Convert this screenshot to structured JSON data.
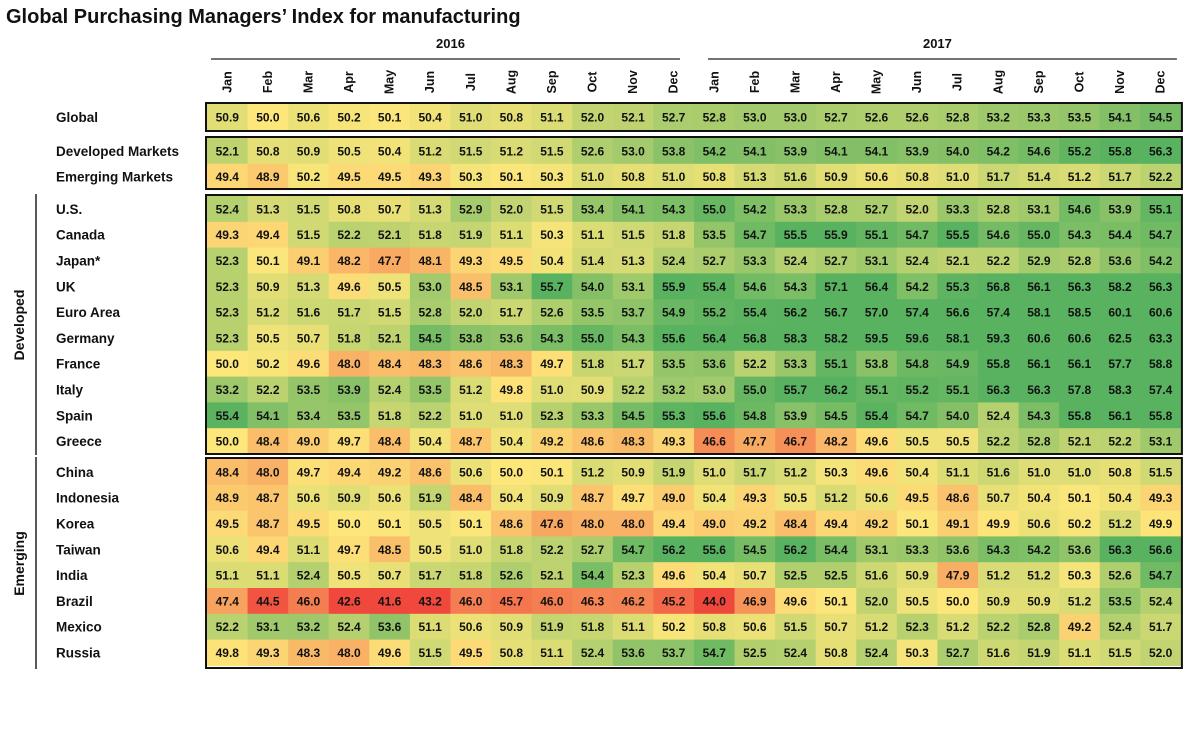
{
  "title": "Global Purchasing Managers’ Index for manufacturing",
  "chart_data": {
    "type": "heatmap",
    "title": "Global Purchasing Managers’ Index for manufacturing",
    "years": [
      "2016",
      "2017"
    ],
    "months": [
      "Jan",
      "Feb",
      "Mar",
      "Apr",
      "May",
      "Jun",
      "Jul",
      "Aug",
      "Sep",
      "Oct",
      "Nov",
      "Dec"
    ],
    "color_scale": {
      "low": "#f0483c",
      "mid": "#fde77a",
      "high": "#58b260"
    },
    "groups": [
      {
        "label": "",
        "rows": [
          {
            "name": "Global",
            "values": [
              50.9,
              50.0,
              50.6,
              50.2,
              50.1,
              50.4,
              51.0,
              50.8,
              51.1,
              52.0,
              52.1,
              52.7,
              52.8,
              53.0,
              53.0,
              52.7,
              52.6,
              52.6,
              52.8,
              53.2,
              53.3,
              53.5,
              54.1,
              54.5
            ]
          }
        ]
      },
      {
        "label": "",
        "rows": [
          {
            "name": "Developed Markets",
            "values": [
              52.1,
              50.8,
              50.9,
              50.5,
              50.4,
              51.2,
              51.5,
              51.2,
              51.5,
              52.6,
              53.0,
              53.8,
              54.2,
              54.1,
              53.9,
              54.1,
              54.1,
              53.9,
              54.0,
              54.2,
              54.6,
              55.2,
              55.8,
              56.3
            ]
          },
          {
            "name": "Emerging Markets",
            "values": [
              49.4,
              48.9,
              50.2,
              49.5,
              49.5,
              49.3,
              50.3,
              50.1,
              50.3,
              51.0,
              50.8,
              51.0,
              50.8,
              51.3,
              51.6,
              50.9,
              50.6,
              50.8,
              51.0,
              51.7,
              51.4,
              51.2,
              51.7,
              52.2
            ]
          }
        ]
      },
      {
        "label": "Developed",
        "rows": [
          {
            "name": "U.S.",
            "values": [
              52.4,
              51.3,
              51.5,
              50.8,
              50.7,
              51.3,
              52.9,
              52.0,
              51.5,
              53.4,
              54.1,
              54.3,
              55.0,
              54.2,
              53.3,
              52.8,
              52.7,
              52.0,
              53.3,
              52.8,
              53.1,
              54.6,
              53.9,
              55.1
            ]
          },
          {
            "name": "Canada",
            "values": [
              49.3,
              49.4,
              51.5,
              52.2,
              52.1,
              51.8,
              51.9,
              51.1,
              50.3,
              51.1,
              51.5,
              51.8,
              53.5,
              54.7,
              55.5,
              55.9,
              55.1,
              54.7,
              55.5,
              54.6,
              55.0,
              54.3,
              54.4,
              54.7
            ]
          },
          {
            "name": "Japan*",
            "values": [
              52.3,
              50.1,
              49.1,
              48.2,
              47.7,
              48.1,
              49.3,
              49.5,
              50.4,
              51.4,
              51.3,
              52.4,
              52.7,
              53.3,
              52.4,
              52.7,
              53.1,
              52.4,
              52.1,
              52.2,
              52.9,
              52.8,
              53.6,
              54.2
            ]
          },
          {
            "name": "UK",
            "values": [
              52.3,
              50.9,
              51.3,
              49.6,
              50.5,
              53.0,
              48.5,
              53.1,
              55.7,
              54.0,
              53.1,
              55.9,
              55.4,
              54.6,
              54.3,
              57.1,
              56.4,
              54.2,
              55.3,
              56.8,
              56.1,
              56.3,
              58.2,
              56.3
            ]
          },
          {
            "name": "Euro Area",
            "values": [
              52.3,
              51.2,
              51.6,
              51.7,
              51.5,
              52.8,
              52.0,
              51.7,
              52.6,
              53.5,
              53.7,
              54.9,
              55.2,
              55.4,
              56.2,
              56.7,
              57.0,
              57.4,
              56.6,
              57.4,
              58.1,
              58.5,
              60.1,
              60.6
            ]
          },
          {
            "name": "Germany",
            "values": [
              52.3,
              50.5,
              50.7,
              51.8,
              52.1,
              54.5,
              53.8,
              53.6,
              54.3,
              55.0,
              54.3,
              55.6,
              56.4,
              56.8,
              58.3,
              58.2,
              59.5,
              59.6,
              58.1,
              59.3,
              60.6,
              60.6,
              62.5,
              63.3
            ]
          },
          {
            "name": "France",
            "values": [
              50.0,
              50.2,
              49.6,
              48.0,
              48.4,
              48.3,
              48.6,
              48.3,
              49.7,
              51.8,
              51.7,
              53.5,
              53.6,
              52.2,
              53.3,
              55.1,
              53.8,
              54.8,
              54.9,
              55.8,
              56.1,
              56.1,
              57.7,
              58.8
            ]
          },
          {
            "name": "Italy",
            "values": [
              53.2,
              52.2,
              53.5,
              53.9,
              52.4,
              53.5,
              51.2,
              49.8,
              51.0,
              50.9,
              52.2,
              53.2,
              53.0,
              55.0,
              55.7,
              56.2,
              55.1,
              55.2,
              55.1,
              56.3,
              56.3,
              57.8,
              58.3,
              57.4
            ]
          },
          {
            "name": "Spain",
            "values": [
              55.4,
              54.1,
              53.4,
              53.5,
              51.8,
              52.2,
              51.0,
              51.0,
              52.3,
              53.3,
              54.5,
              55.3,
              55.6,
              54.8,
              53.9,
              54.5,
              55.4,
              54.7,
              54.0,
              52.4,
              54.3,
              55.8,
              56.1,
              55.8
            ]
          },
          {
            "name": "Greece",
            "values": [
              50.0,
              48.4,
              49.0,
              49.7,
              48.4,
              50.4,
              48.7,
              50.4,
              49.2,
              48.6,
              48.3,
              49.3,
              46.6,
              47.7,
              46.7,
              48.2,
              49.6,
              50.5,
              50.5,
              52.2,
              52.8,
              52.1,
              52.2,
              53.1
            ]
          }
        ]
      },
      {
        "label": "Emerging",
        "rows": [
          {
            "name": "China",
            "values": [
              48.4,
              48.0,
              49.7,
              49.4,
              49.2,
              48.6,
              50.6,
              50.0,
              50.1,
              51.2,
              50.9,
              51.9,
              51.0,
              51.7,
              51.2,
              50.3,
              49.6,
              50.4,
              51.1,
              51.6,
              51.0,
              51.0,
              50.8,
              51.5
            ]
          },
          {
            "name": "Indonesia",
            "values": [
              48.9,
              48.7,
              50.6,
              50.9,
              50.6,
              51.9,
              48.4,
              50.4,
              50.9,
              48.7,
              49.7,
              49.0,
              50.4,
              49.3,
              50.5,
              51.2,
              50.6,
              49.5,
              48.6,
              50.7,
              50.4,
              50.1,
              50.4,
              49.3
            ]
          },
          {
            "name": "Korea",
            "values": [
              49.5,
              48.7,
              49.5,
              50.0,
              50.1,
              50.5,
              50.1,
              48.6,
              47.6,
              48.0,
              48.0,
              49.4,
              49.0,
              49.2,
              48.4,
              49.4,
              49.2,
              50.1,
              49.1,
              49.9,
              50.6,
              50.2,
              51.2,
              49.9
            ]
          },
          {
            "name": "Taiwan",
            "values": [
              50.6,
              49.4,
              51.1,
              49.7,
              48.5,
              50.5,
              51.0,
              51.8,
              52.2,
              52.7,
              54.7,
              56.2,
              55.6,
              54.5,
              56.2,
              54.4,
              53.1,
              53.3,
              53.6,
              54.3,
              54.2,
              53.6,
              56.3,
              56.6
            ]
          },
          {
            "name": "India",
            "values": [
              51.1,
              51.1,
              52.4,
              50.5,
              50.7,
              51.7,
              51.8,
              52.6,
              52.1,
              54.4,
              52.3,
              49.6,
              50.4,
              50.7,
              52.5,
              52.5,
              51.6,
              50.9,
              47.9,
              51.2,
              51.2,
              50.3,
              52.6,
              54.7
            ]
          },
          {
            "name": "Brazil",
            "values": [
              47.4,
              44.5,
              46.0,
              42.6,
              41.6,
              43.2,
              46.0,
              45.7,
              46.0,
              46.3,
              46.2,
              45.2,
              44.0,
              46.9,
              49.6,
              50.1,
              52.0,
              50.5,
              50.0,
              50.9,
              50.9,
              51.2,
              53.5,
              52.4
            ]
          },
          {
            "name": "Mexico",
            "values": [
              52.2,
              53.1,
              53.2,
              52.4,
              53.6,
              51.1,
              50.6,
              50.9,
              51.9,
              51.8,
              51.1,
              50.2,
              50.8,
              50.6,
              51.5,
              50.7,
              51.2,
              52.3,
              51.2,
              52.2,
              52.8,
              49.2,
              52.4,
              51.7
            ]
          },
          {
            "name": "Russia",
            "values": [
              49.8,
              49.3,
              48.3,
              48.0,
              49.6,
              51.5,
              49.5,
              50.8,
              51.1,
              52.4,
              53.6,
              53.7,
              54.7,
              52.5,
              52.4,
              50.8,
              52.4,
              50.3,
              52.7,
              51.6,
              51.9,
              51.1,
              51.5,
              52.0
            ]
          }
        ]
      }
    ]
  }
}
